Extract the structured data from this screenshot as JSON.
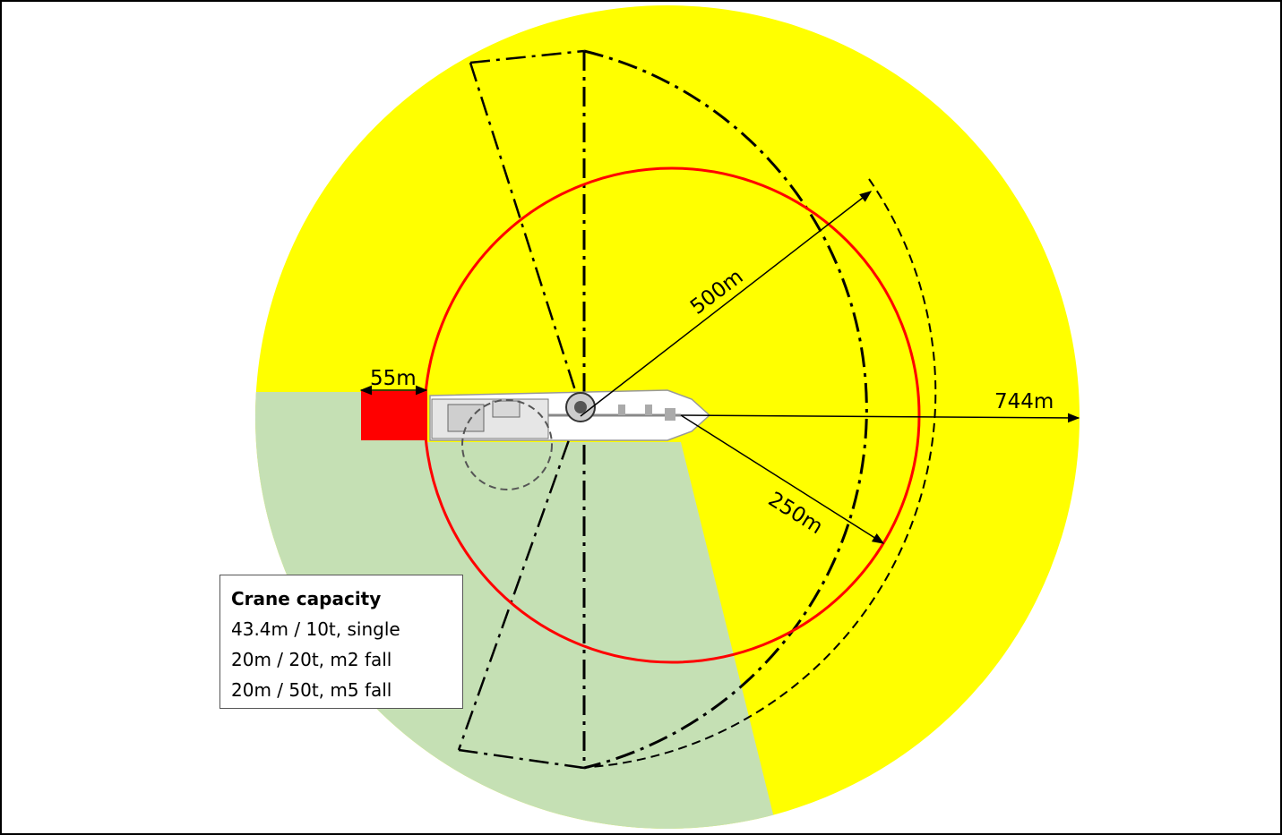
{
  "labels": {
    "r500": "500m",
    "r250": "250m",
    "r744": "744m",
    "w55": "55m"
  },
  "legend": {
    "title": "Crane capacity",
    "lines": [
      "43.4m / 10t, single",
      "20m / 20t, m2 fall",
      "20m / 50t, m5 fall"
    ]
  },
  "colors": {
    "outer_zone": "#ffff00",
    "green_sector": "#c5e0b4",
    "red_circle": "#ff0000",
    "red_block": "#ff0000",
    "border": "#000000"
  }
}
